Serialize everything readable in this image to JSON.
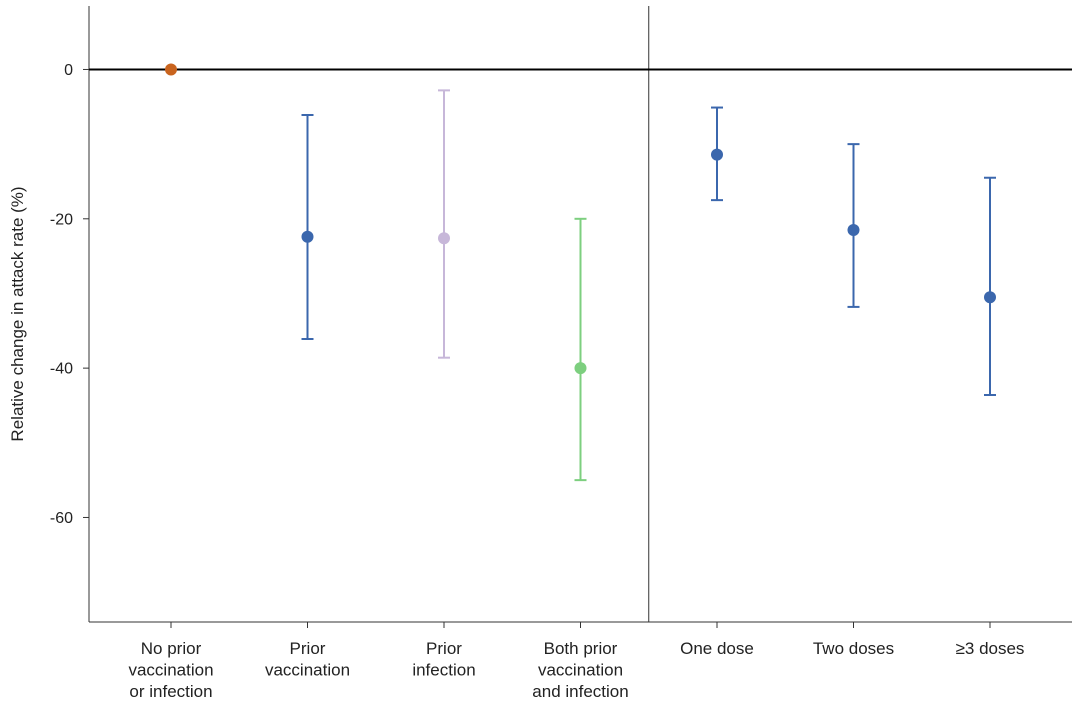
{
  "chart_data": {
    "type": "scatter",
    "title": "",
    "xlabel": "",
    "ylabel": "Relative change in attack rate (%)",
    "ylim": [
      -74,
      8.5
    ],
    "yticks": [
      0,
      -20,
      -40,
      -60
    ],
    "grid": false,
    "legend": "none",
    "reference_line_y": 0,
    "categories": [
      [
        "No prior",
        "vaccination",
        "or infection"
      ],
      [
        "Prior",
        "vaccination"
      ],
      [
        "Prior",
        "infection"
      ],
      [
        "Both prior",
        "vaccination",
        "and infection"
      ],
      [
        "One dose"
      ],
      [
        "Two doses"
      ],
      [
        "≥3 doses"
      ]
    ],
    "points": [
      {
        "estimate": 0,
        "lower": null,
        "upper": null,
        "color": "#c9641e"
      },
      {
        "estimate": -22.4,
        "lower": -36.1,
        "upper": -6.1,
        "color": "#3b67ad"
      },
      {
        "estimate": -22.6,
        "lower": -38.6,
        "upper": -2.8,
        "color": "#c7b7d9"
      },
      {
        "estimate": -40.0,
        "lower": -55.0,
        "upper": -20.0,
        "color": "#7dcf7f"
      },
      {
        "estimate": -11.4,
        "lower": -17.5,
        "upper": -5.1,
        "color": "#3b67ad"
      },
      {
        "estimate": -21.5,
        "lower": -31.8,
        "upper": -10.0,
        "color": "#3b67ad"
      },
      {
        "estimate": -30.5,
        "lower": -43.6,
        "upper": -14.5,
        "color": "#3b67ad"
      }
    ],
    "divider_after_category_index": 3
  }
}
